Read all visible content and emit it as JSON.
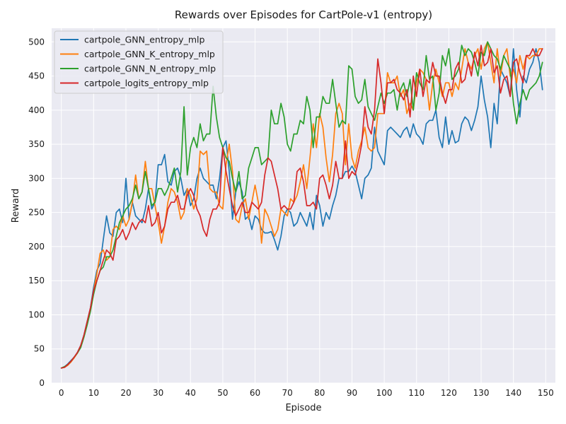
{
  "chart_data": {
    "type": "line",
    "title": "Rewards over Episodes for CartPole-v1 (entropy)",
    "xlabel": "Episode",
    "ylabel": "Reward",
    "xlim": [
      -3,
      153
    ],
    "ylim": [
      0,
      520
    ],
    "xticks": [
      0,
      10,
      20,
      30,
      40,
      50,
      60,
      70,
      80,
      90,
      100,
      110,
      120,
      130,
      140,
      150
    ],
    "yticks": [
      0,
      50,
      100,
      150,
      200,
      250,
      300,
      350,
      400,
      450,
      500
    ],
    "grid": true,
    "background": "#eaeaf2",
    "legend_position": "top-left",
    "series": [
      {
        "name": "cartpole_GNN_entropy_mlp",
        "color": "#1f77b4",
        "values": [
          22,
          24,
          28,
          33,
          38,
          45,
          55,
          70,
          90,
          110,
          140,
          165,
          175,
          210,
          245,
          220,
          215,
          250,
          255,
          235,
          300,
          240,
          265,
          245,
          240,
          235,
          255,
          285,
          255,
          265,
          320,
          320,
          335,
          295,
          290,
          310,
          315,
          300,
          275,
          285,
          260,
          270,
          300,
          315,
          300,
          295,
          290,
          290,
          270,
          300,
          345,
          355,
          310,
          240,
          280,
          295,
          280,
          240,
          245,
          225,
          245,
          240,
          225,
          220,
          220,
          222,
          210,
          195,
          215,
          245,
          255,
          250,
          230,
          235,
          250,
          240,
          230,
          250,
          225,
          275,
          260,
          230,
          250,
          240,
          260,
          275,
          300,
          300,
          310,
          310,
          318,
          310,
          290,
          270,
          300,
          305,
          315,
          375,
          340,
          330,
          320,
          370,
          375,
          370,
          365,
          360,
          370,
          375,
          360,
          380,
          365,
          360,
          350,
          380,
          385,
          385,
          400,
          360,
          345,
          390,
          350,
          370,
          352,
          355,
          380,
          390,
          385,
          370,
          385,
          405,
          450,
          415,
          390,
          345,
          410,
          380,
          460,
          450,
          440,
          420,
          490,
          430,
          390,
          450,
          440,
          460,
          470,
          490,
          470,
          430
        ]
      },
      {
        "name": "cartpole_GNN_K_entropy_mlp",
        "color": "#ff7f0e",
        "values": [
          22,
          23,
          26,
          31,
          37,
          44,
          54,
          68,
          88,
          108,
          135,
          160,
          190,
          195,
          180,
          185,
          225,
          230,
          225,
          245,
          230,
          240,
          265,
          305,
          270,
          280,
          325,
          285,
          285,
          260,
          235,
          205,
          230,
          265,
          285,
          280,
          265,
          240,
          250,
          285,
          275,
          255,
          270,
          340,
          335,
          340,
          285,
          280,
          280,
          260,
          255,
          320,
          350,
          310,
          240,
          235,
          260,
          270,
          240,
          265,
          290,
          265,
          205,
          255,
          245,
          230,
          215,
          225,
          255,
          250,
          245,
          270,
          265,
          275,
          295,
          320,
          285,
          330,
          380,
          345,
          395,
          375,
          330,
          295,
          335,
          395,
          410,
          395,
          320,
          380,
          330,
          315,
          340,
          355,
          375,
          345,
          340,
          345,
          395,
          395,
          395,
          455,
          440,
          440,
          450,
          420,
          430,
          395,
          410,
          400,
          440,
          460,
          455,
          445,
          400,
          440,
          460,
          440,
          420,
          440,
          440,
          420,
          440,
          430,
          460,
          490,
          470,
          460,
          480,
          490,
          460,
          490,
          500,
          470,
          440,
          490,
          450,
          480,
          490,
          450,
          460,
          440,
          480,
          460,
          480,
          475,
          480,
          480,
          490,
          490
        ]
      },
      {
        "name": "cartpole_GNN_N_entropy_mlp",
        "color": "#2ca02c",
        "values": [
          22,
          24,
          27,
          32,
          38,
          44,
          52,
          67,
          85,
          105,
          130,
          150,
          165,
          170,
          185,
          185,
          195,
          215,
          235,
          245,
          255,
          260,
          270,
          290,
          270,
          280,
          310,
          285,
          260,
          265,
          285,
          285,
          275,
          285,
          300,
          315,
          280,
          310,
          405,
          305,
          345,
          360,
          345,
          380,
          355,
          365,
          365,
          435,
          390,
          360,
          345,
          330,
          325,
          300,
          280,
          310,
          270,
          275,
          315,
          330,
          345,
          345,
          320,
          325,
          330,
          400,
          380,
          380,
          410,
          390,
          350,
          340,
          365,
          365,
          385,
          380,
          420,
          400,
          345,
          390,
          390,
          420,
          410,
          410,
          445,
          410,
          375,
          385,
          380,
          465,
          460,
          420,
          410,
          415,
          445,
          405,
          395,
          385,
          405,
          425,
          410,
          425,
          425,
          430,
          400,
          430,
          440,
          420,
          445,
          400,
          455,
          440,
          430,
          480,
          445,
          450,
          400,
          425,
          480,
          465,
          490,
          445,
          450,
          460,
          495,
          480,
          490,
          485,
          470,
          450,
          485,
          480,
          500,
          490,
          480,
          475,
          460,
          480,
          470,
          460,
          410,
          380,
          410,
          430,
          415,
          430,
          435,
          440,
          450,
          470
        ]
      },
      {
        "name": "cartpole_logits_entropy_mlp",
        "color": "#d62728",
        "values": [
          22,
          23,
          27,
          32,
          38,
          45,
          55,
          70,
          90,
          110,
          135,
          150,
          165,
          180,
          195,
          190,
          180,
          210,
          215,
          225,
          210,
          220,
          235,
          225,
          235,
          240,
          235,
          260,
          230,
          235,
          250,
          220,
          230,
          255,
          265,
          265,
          275,
          255,
          255,
          275,
          285,
          275,
          255,
          245,
          225,
          215,
          240,
          255,
          255,
          265,
          345,
          310,
          285,
          260,
          245,
          255,
          265,
          250,
          250,
          265,
          260,
          255,
          265,
          305,
          330,
          325,
          305,
          285,
          255,
          260,
          255,
          255,
          265,
          310,
          315,
          295,
          260,
          260,
          265,
          255,
          300,
          305,
          290,
          270,
          290,
          325,
          300,
          300,
          355,
          300,
          310,
          305,
          325,
          350,
          405,
          375,
          365,
          400,
          475,
          440,
          395,
          440,
          440,
          445,
          430,
          425,
          415,
          430,
          390,
          450,
          420,
          460,
          420,
          445,
          440,
          470,
          450,
          450,
          425,
          410,
          430,
          430,
          460,
          470,
          440,
          445,
          470,
          450,
          485,
          465,
          495,
          465,
          470,
          490,
          455,
          465,
          425,
          445,
          450,
          420,
          470,
          475,
          455,
          440,
          480,
          480,
          490,
          480,
          480,
          490
        ]
      }
    ]
  }
}
